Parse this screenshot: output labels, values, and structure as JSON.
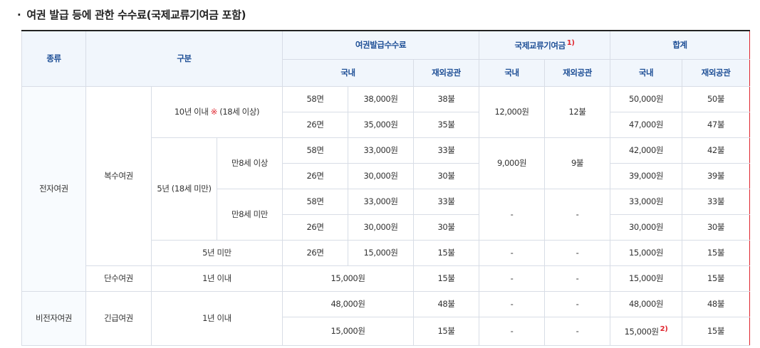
{
  "title": {
    "bullet": "·",
    "text": "여권 발급 등에 관한 수수료(국제교류기여금 포함)"
  },
  "headers": {
    "type": "종류",
    "category": "구분",
    "issuance_fee": "여권발급수수료",
    "intl_contribution": "국제교류기여금",
    "intl_footnote": "1)",
    "total": "합계",
    "domestic": "국내",
    "overseas": "재외공관"
  },
  "marks": {
    "asterisk": "※",
    "footnote2": "2)"
  },
  "rows": {
    "r1": {
      "type": "전자여권",
      "kind": "복수여권",
      "period": "10년 이내",
      "period_note": " (18세 이상)",
      "pages": "58면",
      "fee_dom": "38,000원",
      "fee_ovs": "38불",
      "intl_dom": "12,000원",
      "intl_ovs": "12불",
      "tot_dom": "50,000원",
      "tot_ovs": "50불"
    },
    "r2": {
      "pages": "26면",
      "fee_dom": "35,000원",
      "fee_ovs": "35불",
      "tot_dom": "47,000원",
      "tot_ovs": "47불"
    },
    "r3": {
      "period": "5년 (18세 미만)",
      "age": "만8세 이상",
      "pages": "58면",
      "fee_dom": "33,000원",
      "fee_ovs": "33불",
      "intl_dom": "9,000원",
      "intl_ovs": "9불",
      "tot_dom": "42,000원",
      "tot_ovs": "42불"
    },
    "r4": {
      "pages": "26면",
      "fee_dom": "30,000원",
      "fee_ovs": "30불",
      "tot_dom": "39,000원",
      "tot_ovs": "39불"
    },
    "r5": {
      "age": "만8세 미만",
      "pages": "58면",
      "fee_dom": "33,000원",
      "fee_ovs": "33불",
      "intl_dom": "-",
      "intl_ovs": "-",
      "tot_dom": "33,000원",
      "tot_ovs": "33불"
    },
    "r6": {
      "pages": "26면",
      "fee_dom": "30,000원",
      "fee_ovs": "30불",
      "tot_dom": "30,000원",
      "tot_ovs": "30불"
    },
    "r7": {
      "period": "5년 미만",
      "pages": "26면",
      "fee_dom": "15,000원",
      "fee_ovs": "15불",
      "intl_dom": "-",
      "intl_ovs": "-",
      "tot_dom": "15,000원",
      "tot_ovs": "15불"
    },
    "r8": {
      "kind": "단수여권",
      "period": "1년 이내",
      "fee_dom": "15,000원",
      "fee_ovs": "15불",
      "intl_dom": "-",
      "intl_ovs": "-",
      "tot_dom": "15,000원",
      "tot_ovs": "15불"
    },
    "r9": {
      "type": "비전자여권",
      "kind": "긴급여권",
      "period": "1년 이내",
      "fee_dom": "48,000원",
      "fee_ovs": "48불",
      "intl_dom": "-",
      "intl_ovs": "-",
      "tot_dom": "48,000원",
      "tot_ovs": "48불"
    },
    "r10": {
      "fee_dom": "15,000원",
      "fee_ovs": "15불",
      "intl_dom": "-",
      "intl_ovs": "-",
      "tot_dom": "15,000원",
      "tot_ovs": "15불"
    }
  }
}
